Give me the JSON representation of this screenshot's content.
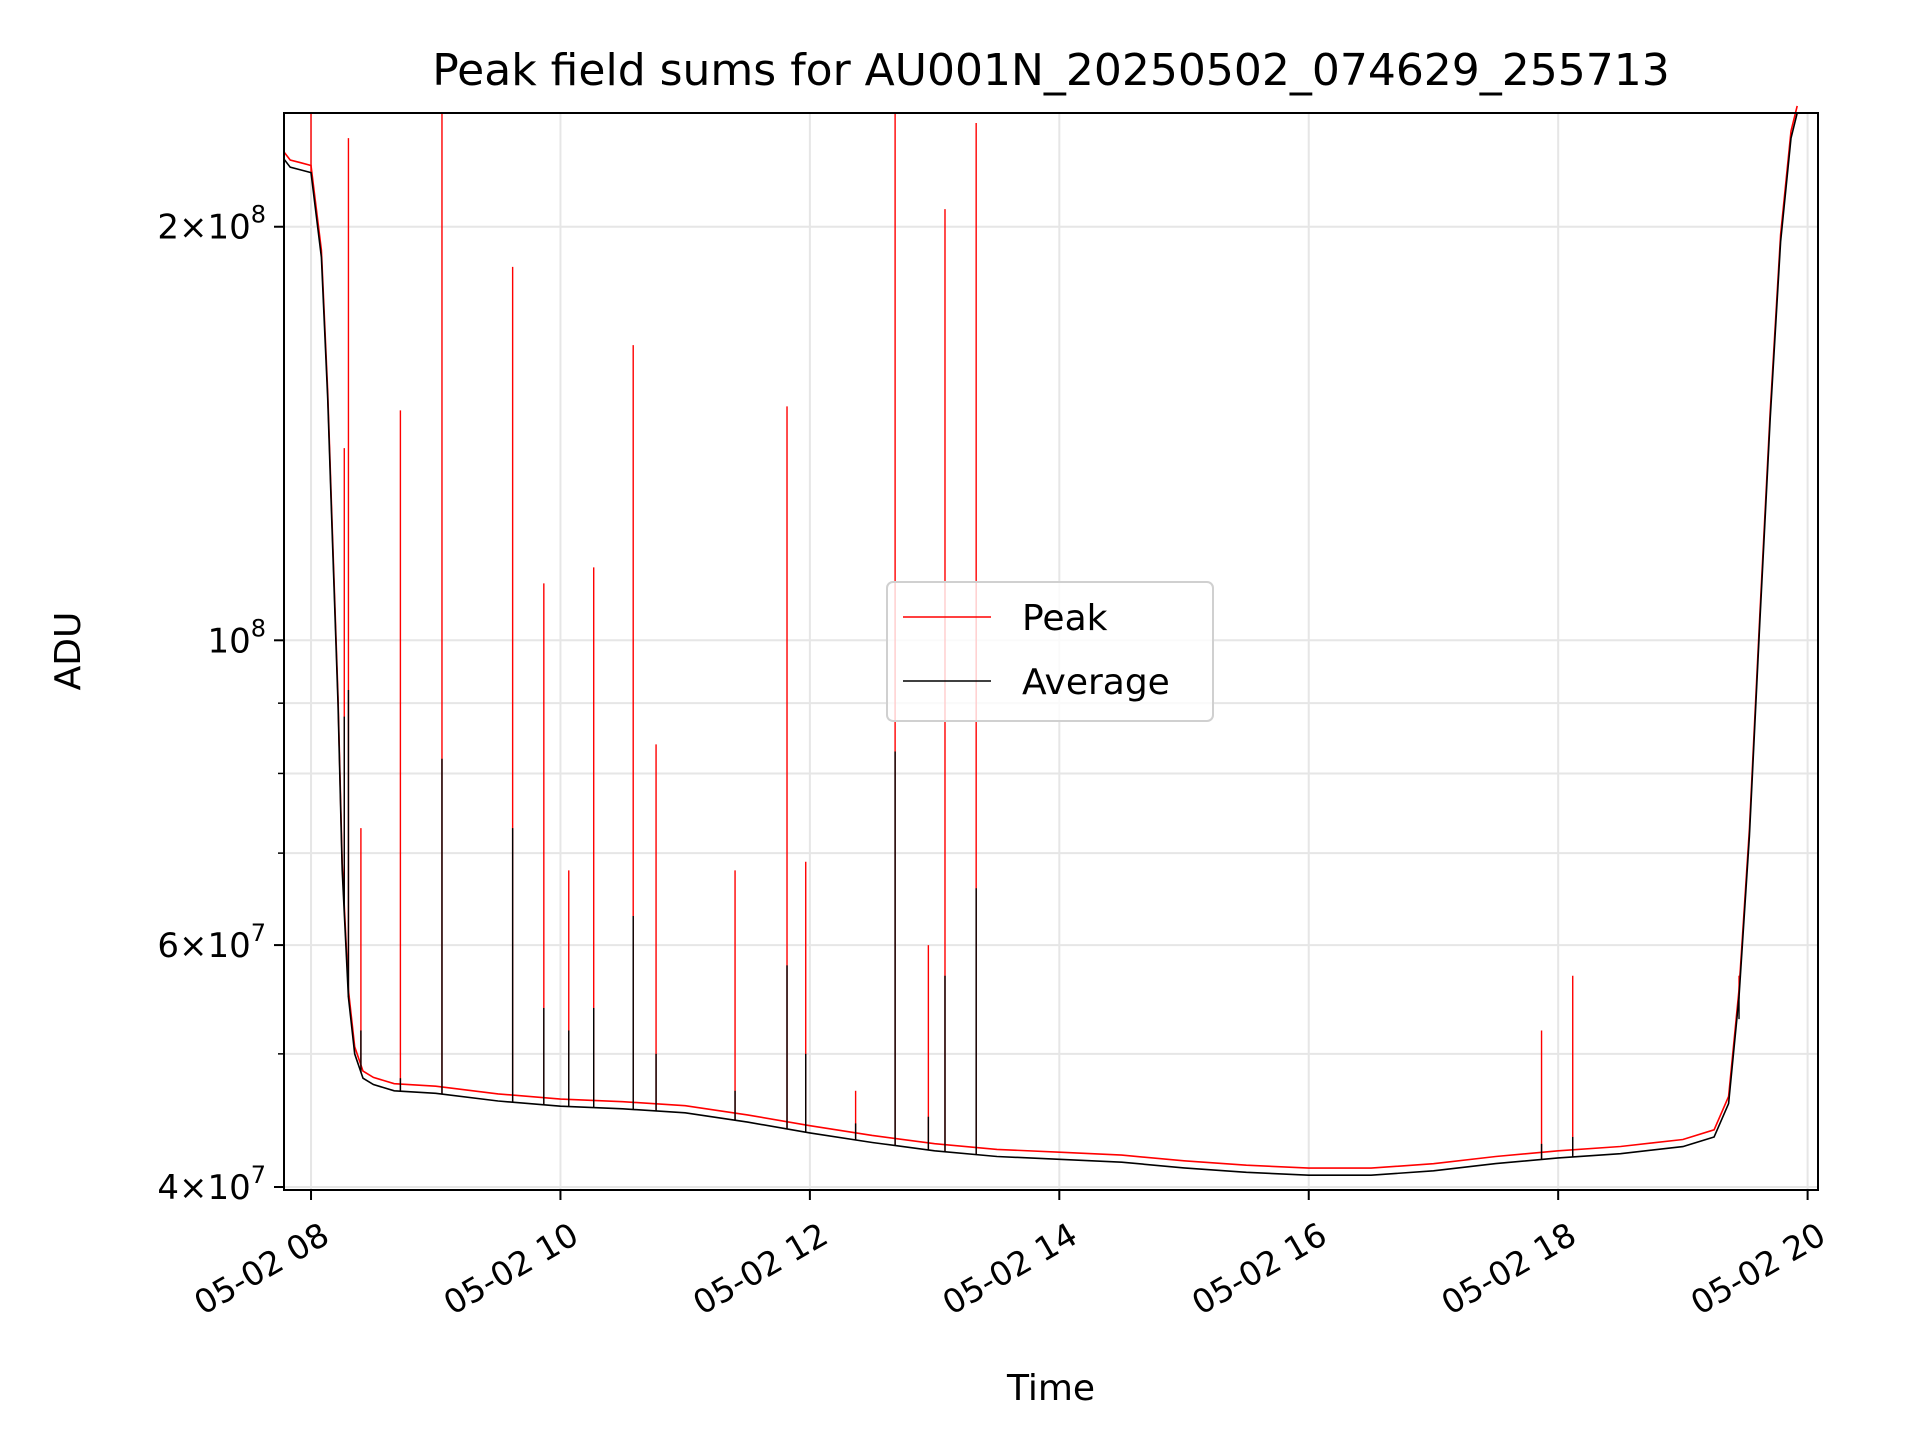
{
  "chart_data": {
    "type": "line",
    "title": "Peak field sums for AU001N_20250502_074629_255713",
    "xlabel": "Time",
    "ylabel": "ADU",
    "yscale": "log",
    "xlim": [
      "2025-05-02T07:47",
      "2025-05-02T20:05"
    ],
    "ylim": [
      39800000,
      242000000
    ],
    "x_ticks": [
      "2025-05-02T08:00",
      "2025-05-02T10:00",
      "2025-05-02T12:00",
      "2025-05-02T14:00",
      "2025-05-02T16:00",
      "2025-05-02T18:00",
      "2025-05-02T20:00"
    ],
    "x_tick_labels": [
      "05-02 08",
      "05-02 10",
      "05-02 12",
      "05-02 14",
      "05-02 16",
      "05-02 18",
      "05-02 20"
    ],
    "y_ticks": [
      {
        "value": 40000000,
        "mantissa": "4",
        "exp": "7"
      },
      {
        "value": 60000000,
        "mantissa": "6",
        "exp": "7"
      },
      {
        "value": 100000000,
        "mantissa": "",
        "exp": "8"
      },
      {
        "value": 200000000,
        "mantissa": "2",
        "exp": "8"
      }
    ],
    "y_minor_ticks": [
      50000000,
      70000000,
      80000000,
      90000000
    ],
    "grid": true,
    "legend_position": "center",
    "colors": {
      "peak": "#ff0000",
      "average": "#000000"
    },
    "series": [
      {
        "name": "Average",
        "x": [
          "2025-05-02T07:47",
          "2025-05-02T07:50",
          "2025-05-02T07:55",
          "2025-05-02T08:00",
          "2025-05-02T08:05",
          "2025-05-02T08:08",
          "2025-05-02T08:10",
          "2025-05-02T08:13",
          "2025-05-02T08:15",
          "2025-05-02T08:18",
          "2025-05-02T08:21",
          "2025-05-02T08:25",
          "2025-05-02T08:30",
          "2025-05-02T08:40",
          "2025-05-02T09:00",
          "2025-05-02T09:30",
          "2025-05-02T10:00",
          "2025-05-02T10:30",
          "2025-05-02T11:00",
          "2025-05-02T11:30",
          "2025-05-02T12:00",
          "2025-05-02T12:30",
          "2025-05-02T13:00",
          "2025-05-02T13:30",
          "2025-05-02T14:00",
          "2025-05-02T14:30",
          "2025-05-02T15:00",
          "2025-05-02T15:30",
          "2025-05-02T16:00",
          "2025-05-02T16:30",
          "2025-05-02T17:00",
          "2025-05-02T17:30",
          "2025-05-02T18:00",
          "2025-05-02T18:30",
          "2025-05-02T19:00",
          "2025-05-02T19:15",
          "2025-05-02T19:22",
          "2025-05-02T19:27",
          "2025-05-02T19:32",
          "2025-05-02T19:37",
          "2025-05-02T19:42",
          "2025-05-02T19:47",
          "2025-05-02T19:52",
          "2025-05-02T19:55"
        ],
        "values": [
          224000000,
          221000000,
          220000000,
          219000000,
          190000000,
          150000000,
          122000000,
          90000000,
          68000000,
          55000000,
          50000000,
          48000000,
          47500000,
          47000000,
          46800000,
          46200000,
          45800000,
          45600000,
          45300000,
          44600000,
          43800000,
          43100000,
          42500000,
          42100000,
          41900000,
          41700000,
          41300000,
          41000000,
          40800000,
          40800000,
          41100000,
          41600000,
          42000000,
          42300000,
          42800000,
          43500000,
          46000000,
          55000000,
          72000000,
          103000000,
          145000000,
          195000000,
          232000000,
          242000000
        ]
      },
      {
        "name": "Peak",
        "spikes": [
          {
            "x": "2025-05-02T08:00",
            "peak": 242000000,
            "average": 219000000
          },
          {
            "x": "2025-05-02T08:16",
            "peak": 138000000,
            "average": 88000000
          },
          {
            "x": "2025-05-02T08:18",
            "peak": 232000000,
            "average": 92000000
          },
          {
            "x": "2025-05-02T08:24",
            "peak": 73000000,
            "average": 52000000
          },
          {
            "x": "2025-05-02T08:43",
            "peak": 147000000,
            "average": 48000000
          },
          {
            "x": "2025-05-02T09:03",
            "peak": 242000000,
            "average": 82000000
          },
          {
            "x": "2025-05-02T09:37",
            "peak": 187000000,
            "average": 73000000
          },
          {
            "x": "2025-05-02T09:52",
            "peak": 110000000,
            "average": 54000000
          },
          {
            "x": "2025-05-02T10:04",
            "peak": 68000000,
            "average": 52000000
          },
          {
            "x": "2025-05-02T10:16",
            "peak": 113000000,
            "average": 54000000
          },
          {
            "x": "2025-05-02T10:35",
            "peak": 164000000,
            "average": 63000000
          },
          {
            "x": "2025-05-02T10:46",
            "peak": 84000000,
            "average": 50000000
          },
          {
            "x": "2025-05-02T11:24",
            "peak": 68000000,
            "average": 47000000
          },
          {
            "x": "2025-05-02T11:49",
            "peak": 148000000,
            "average": 58000000
          },
          {
            "x": "2025-05-02T11:58",
            "peak": 69000000,
            "average": 50000000
          },
          {
            "x": "2025-05-02T12:22",
            "peak": 47000000,
            "average": 44500000
          },
          {
            "x": "2025-05-02T12:41",
            "peak": 242000000,
            "average": 83000000
          },
          {
            "x": "2025-05-02T12:57",
            "peak": 60000000,
            "average": 45000000
          },
          {
            "x": "2025-05-02T13:05",
            "peak": 206000000,
            "average": 57000000
          },
          {
            "x": "2025-05-02T13:20",
            "peak": 238000000,
            "average": 66000000
          },
          {
            "x": "2025-05-02T17:52",
            "peak": 52000000,
            "average": 43000000
          },
          {
            "x": "2025-05-02T18:07",
            "peak": 57000000,
            "average": 43500000
          },
          {
            "x": "2025-05-02T19:27",
            "peak": 57000000,
            "average": 53000000
          }
        ]
      }
    ]
  }
}
